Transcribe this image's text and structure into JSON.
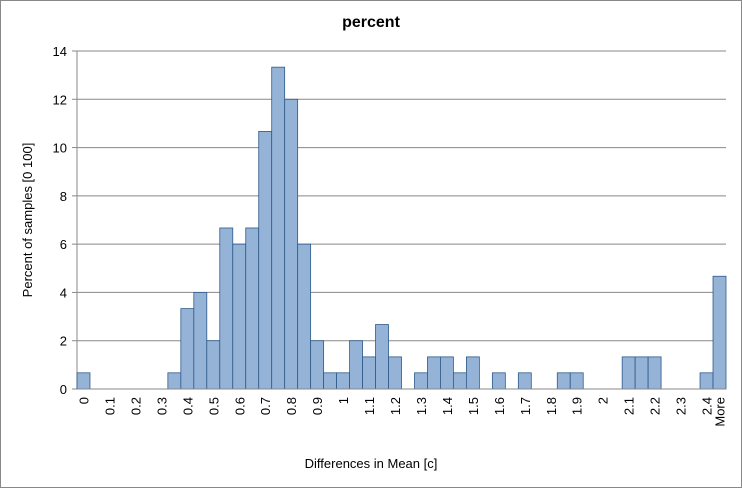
{
  "chart_data": {
    "type": "bar",
    "title": "percent",
    "x_label": "Differences in Mean [c]",
    "y_label": "Percent of samples [0 100]",
    "categories": [
      "0",
      null,
      "0.1",
      null,
      "0.2",
      null,
      "0.3",
      null,
      "0.4",
      null,
      "0.5",
      null,
      "0.6",
      null,
      "0.7",
      null,
      "0.8",
      null,
      "0.9",
      null,
      "1",
      null,
      "1.1",
      null,
      "1.2",
      null,
      "1.3",
      null,
      "1.4",
      null,
      "1.5",
      null,
      "1.6",
      null,
      "1.7",
      null,
      "1.8",
      null,
      "1.9",
      null,
      "2",
      null,
      "2.1",
      null,
      "2.2",
      null,
      "2.3",
      null,
      "2.4",
      "More"
    ],
    "values": [
      0.67,
      0,
      0,
      0,
      0,
      0,
      0,
      0.67,
      3.33,
      4,
      2,
      6.67,
      6,
      6.67,
      10.67,
      13.33,
      12,
      6,
      2,
      0.67,
      0.67,
      2,
      1.33,
      2.67,
      1.33,
      0,
      0.67,
      1.33,
      1.33,
      0.67,
      1.33,
      0,
      0.67,
      0,
      0.67,
      0,
      0,
      0.67,
      0.67,
      0,
      0,
      0,
      1.33,
      1.33,
      1.33,
      0,
      0,
      0,
      0.67,
      4.67
    ],
    "color": "#95b3d7",
    "edge_color": "#2e5a8a",
    "ylim": [
      0,
      14
    ],
    "yticks": [
      0,
      2,
      4,
      6,
      8,
      10,
      12,
      14
    ],
    "grid": true
  }
}
